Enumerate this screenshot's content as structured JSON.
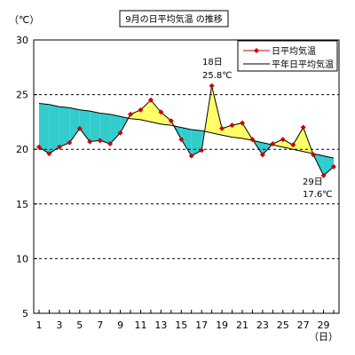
{
  "chart_data": {
    "type": "line",
    "title": "9月の日平均気温 の推移",
    "ylabel": "（℃）",
    "xlabel": "（日）",
    "ylim": [
      5,
      30
    ],
    "yticks": [
      5,
      10,
      15,
      20,
      25,
      30
    ],
    "xlim": [
      1,
      30
    ],
    "xticks": [
      1,
      3,
      5,
      7,
      9,
      11,
      13,
      15,
      17,
      19,
      21,
      23,
      25,
      27,
      29
    ],
    "grid": "horizontal-dashed",
    "legend_position": "top-right",
    "x": [
      1,
      2,
      3,
      4,
      5,
      6,
      7,
      8,
      9,
      10,
      11,
      12,
      13,
      14,
      15,
      16,
      17,
      18,
      19,
      20,
      21,
      22,
      23,
      24,
      25,
      26,
      27,
      28,
      29,
      30
    ],
    "series": [
      {
        "name": "日平均気温",
        "color": "#cc0000",
        "marker": "diamond",
        "values": [
          20.2,
          19.6,
          20.2,
          20.6,
          21.9,
          20.7,
          20.8,
          20.5,
          21.5,
          23.2,
          23.6,
          24.5,
          23.4,
          22.6,
          20.9,
          19.4,
          19.9,
          25.8,
          21.9,
          22.2,
          22.4,
          20.9,
          19.5,
          20.5,
          20.9,
          20.4,
          22.0,
          19.5,
          17.6,
          18.4
        ]
      },
      {
        "name": "平年日平均気温",
        "color": "#000000",
        "values": [
          24.2,
          24.1,
          23.9,
          23.8,
          23.6,
          23.5,
          23.3,
          23.2,
          23.0,
          22.8,
          22.7,
          22.5,
          22.3,
          22.2,
          22.0,
          21.8,
          21.7,
          21.5,
          21.3,
          21.1,
          21.0,
          20.8,
          20.6,
          20.4,
          20.2,
          20.0,
          19.8,
          19.6,
          19.4,
          19.2
        ]
      }
    ],
    "fill_above_color": "#ffff66",
    "fill_below_color": "#33cccc",
    "annotations": [
      {
        "day": 18,
        "label_day": "18日",
        "label_value": "25.8℃"
      },
      {
        "day": 29,
        "label_day": "29日",
        "label_value": "17.6℃"
      }
    ]
  }
}
